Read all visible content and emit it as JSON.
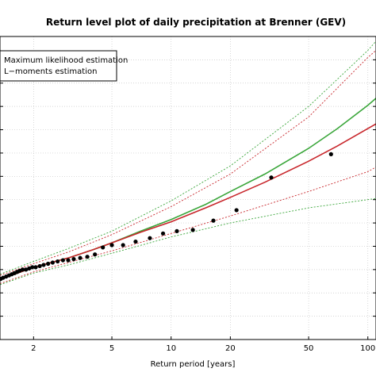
{
  "chart_data": {
    "type": "line",
    "title": "Return level plot of daily precipitation at Brenner (GEV)",
    "xlabel": "Return period [years]",
    "ylabel": "",
    "x_scale": "log",
    "xlim": [
      1.35,
      110
    ],
    "ylim": [
      0,
      130
    ],
    "x_ticks": [
      2,
      5,
      10,
      20,
      50,
      100
    ],
    "x_tick_labels": [
      "2",
      "5",
      "10",
      "20",
      "50",
      "100"
    ],
    "y_ticks": [
      10,
      20,
      30,
      40,
      50,
      60,
      70,
      80,
      90,
      100,
      110,
      120
    ],
    "grid": true,
    "legend": {
      "placement": "top-left",
      "entries": [
        "Maximum likelihood estimation",
        "L−moments estimation"
      ]
    },
    "colors": {
      "mle": "#3aa63a",
      "lmom": "#c8262b",
      "observed": "#000000",
      "grid": "#c8c8c8"
    },
    "series": [
      {
        "label_ref": "Maximum likelihood estimation",
        "style": "solid",
        "color_ref": "mle",
        "x": [
          1.35,
          1.6,
          2,
          3,
          4,
          5,
          7,
          10,
          15,
          20,
          30,
          50,
          70,
          100,
          110
        ],
        "y": [
          26.0,
          28.0,
          31.0,
          35.0,
          38.5,
          41.5,
          46.5,
          51.5,
          58.0,
          63.5,
          71.0,
          82.0,
          90.5,
          100.5,
          103.5
        ]
      },
      {
        "label_ref": "L−moments estimation",
        "style": "solid",
        "color_ref": "lmom",
        "x": [
          1.35,
          1.6,
          2,
          3,
          4,
          5,
          7,
          10,
          15,
          20,
          30,
          50,
          70,
          100,
          110
        ],
        "y": [
          26.0,
          28.0,
          31.0,
          35.0,
          38.5,
          41.5,
          46.0,
          50.5,
          56.5,
          61.0,
          67.5,
          76.5,
          83.0,
          90.5,
          92.5
        ]
      },
      {
        "label_ref": "Maximum likelihood estimation",
        "style": "dotted",
        "color_ref": "mle",
        "x": [
          1.35,
          2,
          3,
          5,
          10,
          20,
          50,
          100,
          110
        ],
        "y": [
          28.0,
          33.5,
          39.0,
          46.5,
          59.5,
          74.5,
          100.0,
          124.0,
          128.0
        ]
      },
      {
        "label_ref": "Maximum likelihood estimation",
        "style": "dotted",
        "color_ref": "mle",
        "x": [
          1.35,
          2,
          3,
          5,
          10,
          20,
          50,
          100,
          110
        ],
        "y": [
          23.5,
          28.5,
          32.0,
          37.0,
          44.0,
          50.0,
          56.5,
          60.0,
          60.5
        ]
      },
      {
        "label_ref": "L−moments estimation",
        "style": "dotted",
        "color_ref": "lmom",
        "x": [
          1.35,
          2,
          3,
          5,
          10,
          20,
          50,
          100,
          110
        ],
        "y": [
          27.5,
          32.5,
          37.5,
          45.0,
          57.0,
          71.0,
          95.5,
          121.0,
          124.0
        ]
      },
      {
        "label_ref": "L−moments estimation",
        "style": "dotted",
        "color_ref": "lmom",
        "x": [
          1.35,
          2,
          3,
          5,
          10,
          20,
          50,
          100,
          110
        ],
        "y": [
          24.0,
          29.0,
          33.0,
          38.0,
          45.5,
          53.0,
          63.5,
          72.0,
          74.0
        ]
      }
    ],
    "observed_points": {
      "marker": "dot",
      "color_ref": "observed",
      "x": [
        1.36,
        1.4,
        1.45,
        1.5,
        1.55,
        1.6,
        1.65,
        1.7,
        1.76,
        1.83,
        1.9,
        1.97,
        2.05,
        2.15,
        2.25,
        2.37,
        2.5,
        2.65,
        2.82,
        3.0,
        3.2,
        3.45,
        3.75,
        4.1,
        4.5,
        5.0,
        5.7,
        6.6,
        7.8,
        9.1,
        10.7,
        12.9,
        16.4,
        21.5,
        32.3,
        65.0
      ],
      "y": [
        26.0,
        26.5,
        27.0,
        27.5,
        28.0,
        28.5,
        29.0,
        29.5,
        30.0,
        30.0,
        30.5,
        31.0,
        31.0,
        31.5,
        32.0,
        32.5,
        33.0,
        33.5,
        34.0,
        34.0,
        34.5,
        35.0,
        35.5,
        36.5,
        39.5,
        40.5,
        40.5,
        42.0,
        43.5,
        45.5,
        46.5,
        47.0,
        51.0,
        55.5,
        69.5,
        79.5
      ]
    }
  }
}
